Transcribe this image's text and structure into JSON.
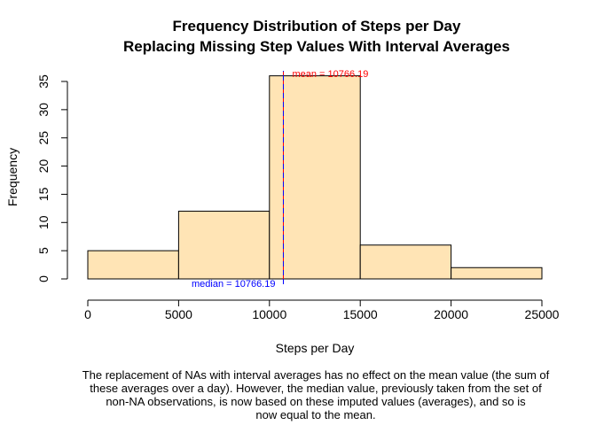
{
  "chart_data": {
    "type": "bar",
    "subtype": "histogram",
    "title_lines": [
      "Frequency Distribution of Steps per Day",
      "Replacing Missing Step Values With Interval Averages"
    ],
    "xlabel": "Steps per Day",
    "ylabel": "Frequency",
    "bins": [
      {
        "from": 0,
        "to": 5000,
        "count": 5
      },
      {
        "from": 5000,
        "to": 10000,
        "count": 12
      },
      {
        "from": 10000,
        "to": 15000,
        "count": 36
      },
      {
        "from": 15000,
        "to": 20000,
        "count": 6
      },
      {
        "from": 20000,
        "to": 25000,
        "count": 2
      }
    ],
    "xlim": [
      0,
      25000
    ],
    "ylim": [
      0,
      37
    ],
    "x_ticks": [
      0,
      5000,
      10000,
      15000,
      20000,
      25000
    ],
    "x_tick_labels": [
      "0",
      "5000",
      "10000",
      "15000",
      "20000",
      "25000"
    ],
    "y_ticks": [
      0,
      5,
      10,
      15,
      20,
      25,
      30,
      35
    ],
    "y_tick_labels": [
      "0",
      "5",
      "10",
      "15",
      "20",
      "25",
      "30",
      "35"
    ],
    "grid": false,
    "bar_fill": "#FFE4B5",
    "bar_stroke": "#000000",
    "annotations": [
      {
        "label": "mean = 10766.19",
        "x": 10766.19,
        "color": "#FF0000"
      },
      {
        "label": "median = 10766.19",
        "x": 10766.19,
        "color": "#0000FF"
      }
    ],
    "caption_lines": [
      "The replacement of NAs with interval averages has no effect on the mean value (the sum of",
      "these averages over a day).  However, the median value, previously taken from the set of",
      "non-NA observations, is now based on these imputed values (averages), and so is",
      "now equal to the mean."
    ]
  }
}
